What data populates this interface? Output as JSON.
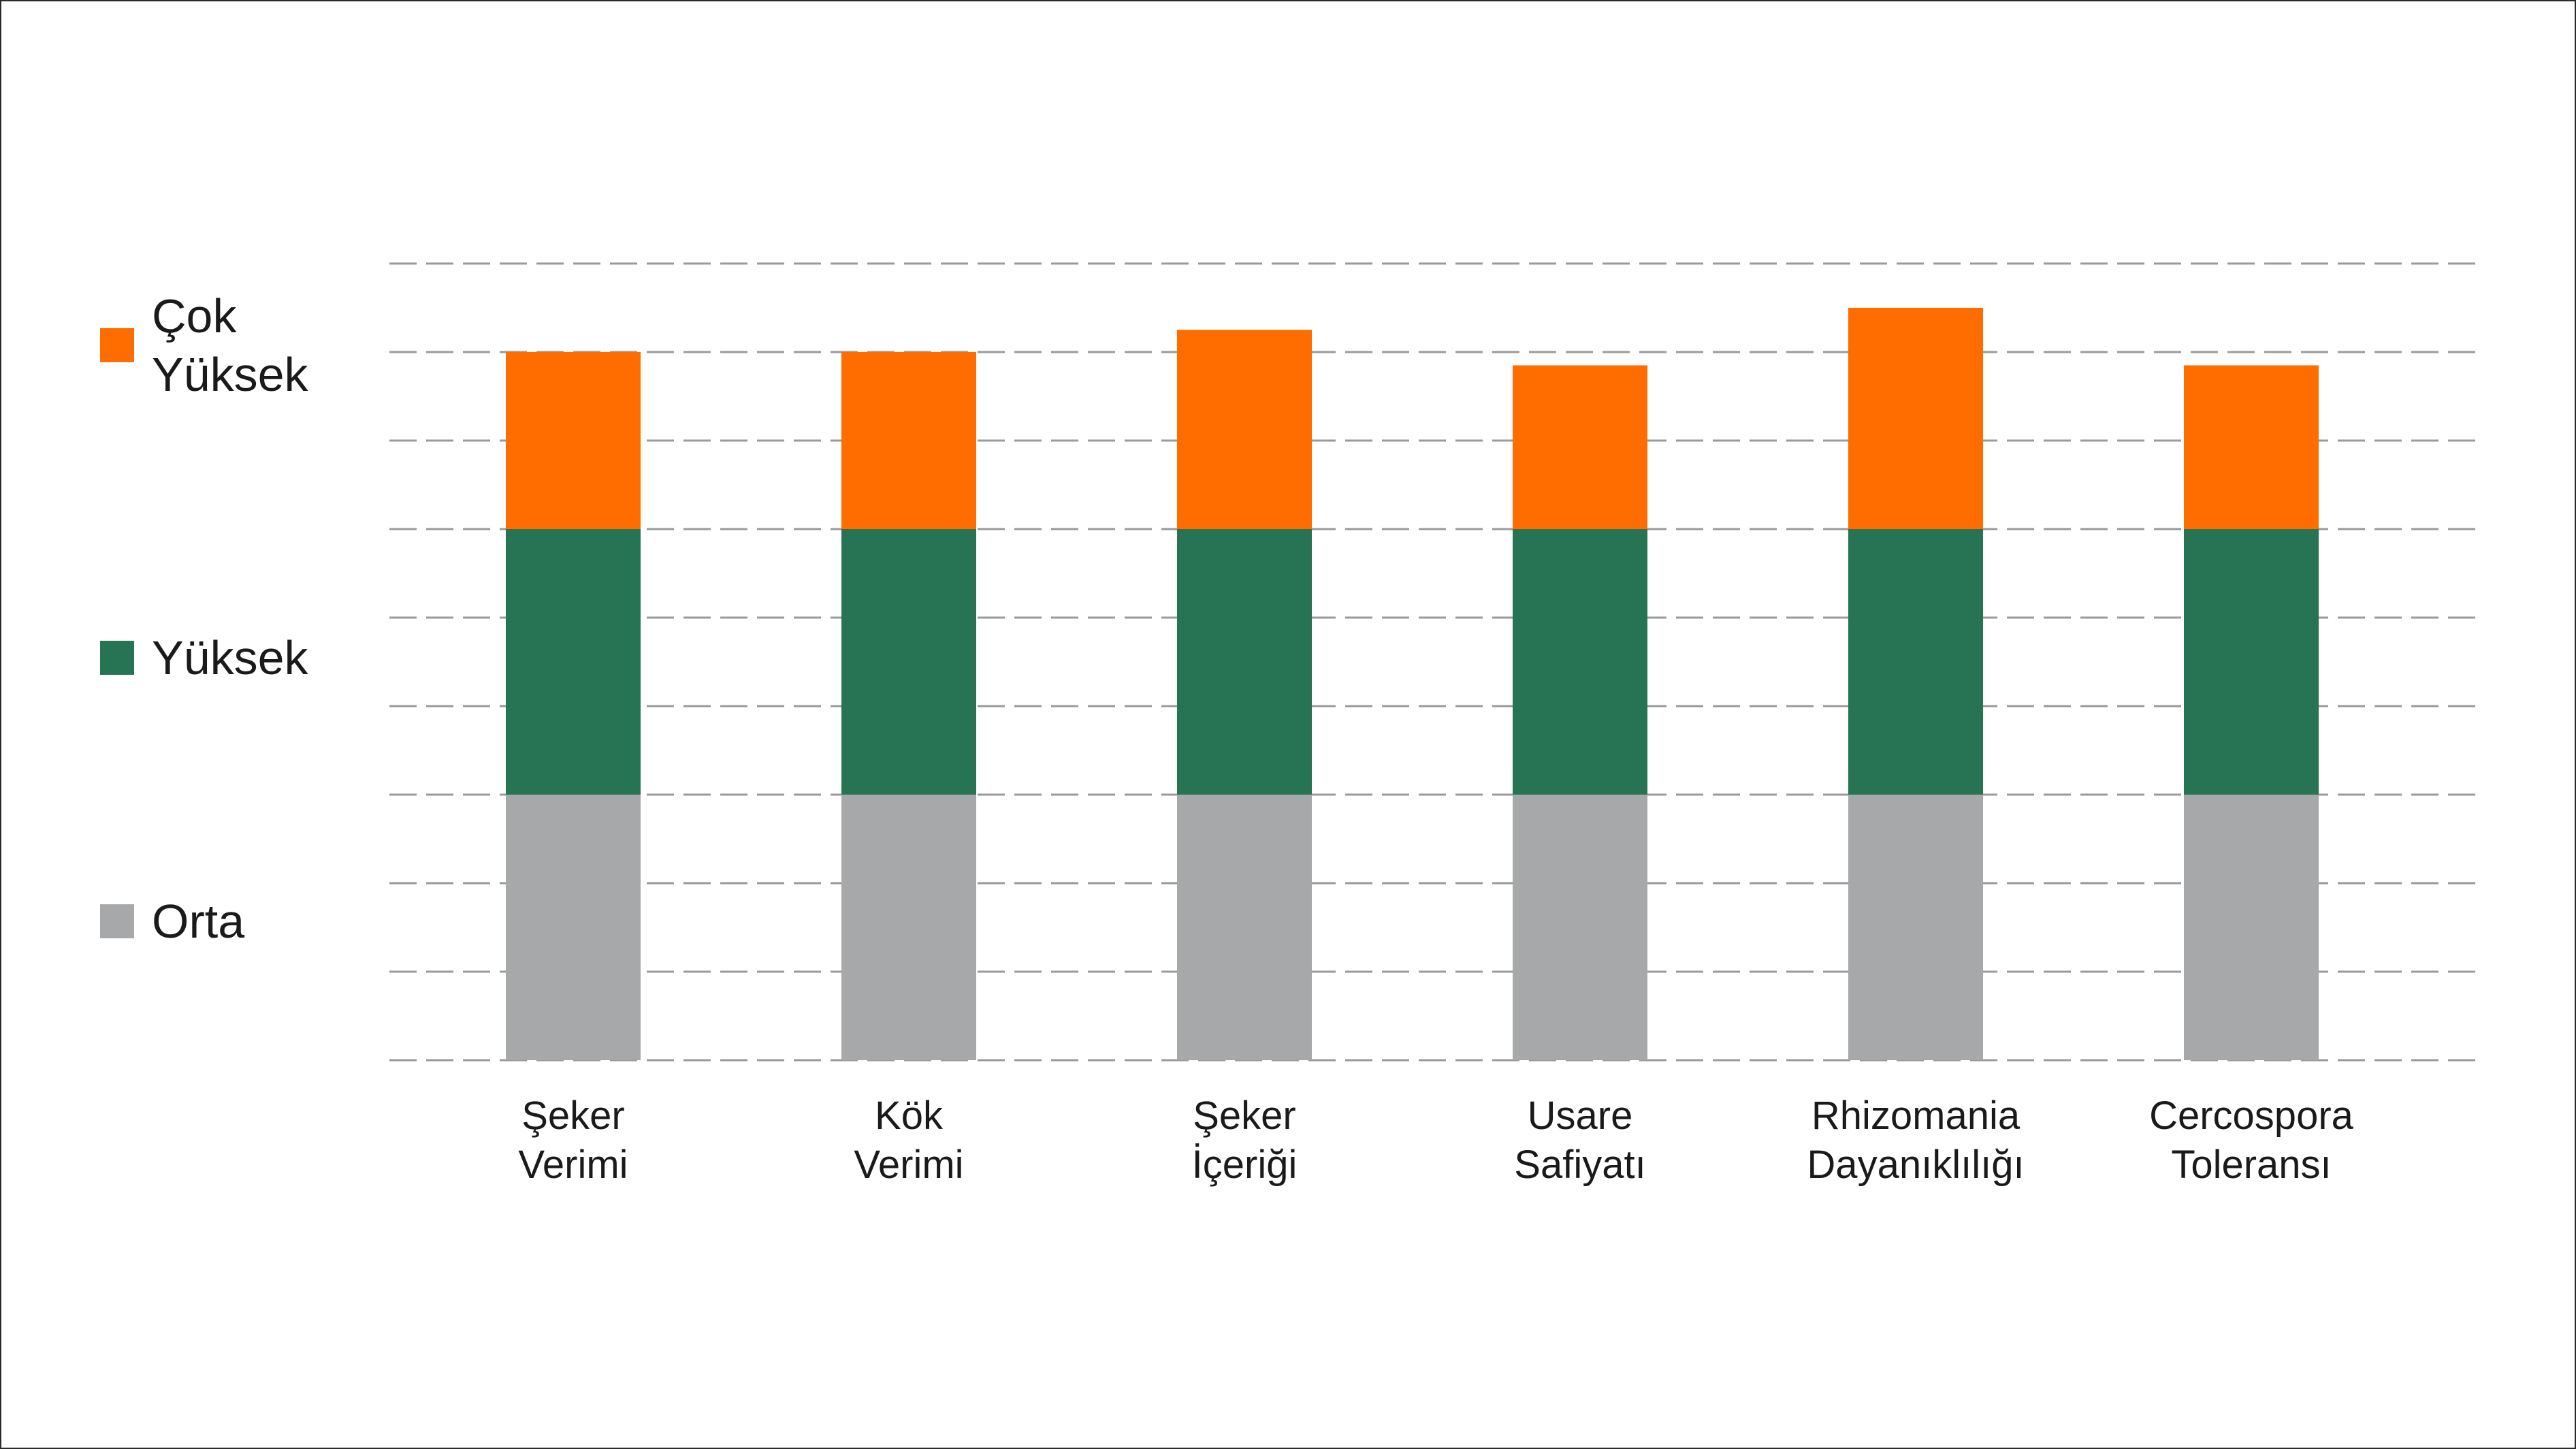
{
  "chart_data": {
    "type": "bar",
    "stacked": true,
    "title": "",
    "xlabel": "",
    "ylabel": "",
    "ylim": [
      0,
      9
    ],
    "grid": true,
    "grid_style": "dashed",
    "legend_position": "left",
    "categories": [
      [
        "Şeker",
        "Verimi"
      ],
      [
        "Kök",
        "Verimi"
      ],
      [
        "Şeker",
        "İçeriği"
      ],
      [
        "Usare",
        "Safiyatı"
      ],
      [
        "Rhizomania",
        "Dayanıklılığı"
      ],
      [
        "Cercospora",
        "Toleransı"
      ]
    ],
    "series": [
      {
        "name": "Orta",
        "color": "#a7a8aa",
        "values": [
          3,
          3,
          3,
          3,
          3,
          3
        ]
      },
      {
        "name": "Yüksek",
        "color": "#277454",
        "values": [
          3,
          3,
          3,
          3,
          3,
          3
        ]
      },
      {
        "name": "Çok Yüksek",
        "color": "#ff6c00",
        "values": [
          2,
          2,
          2.25,
          1.85,
          2.5,
          1.85
        ]
      }
    ]
  },
  "legend": {
    "items": [
      {
        "label": "Orta",
        "color": "#a7a8aa"
      },
      {
        "label": "Yüksek",
        "color": "#277454"
      },
      {
        "label": "Çok\nYüksek",
        "color": "#ff6c00"
      }
    ]
  }
}
